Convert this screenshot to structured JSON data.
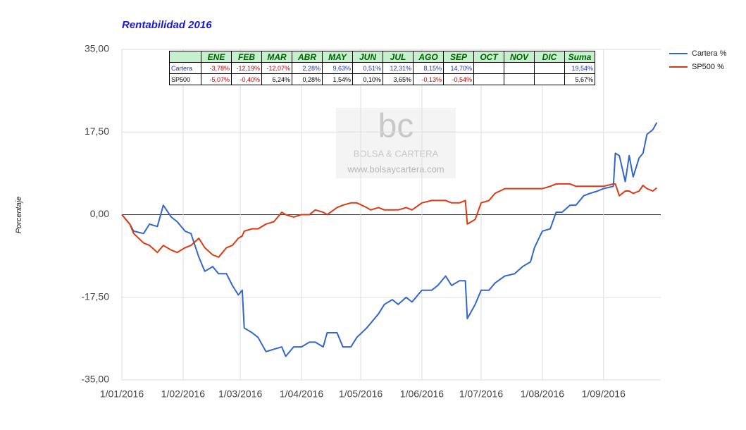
{
  "chart_data": {
    "type": "line",
    "title": "Rentabilidad 2016",
    "y_label": "Porcentaje",
    "x": [
      "2016-01-01",
      "2016-01-05",
      "2016-01-07",
      "2016-01-12",
      "2016-01-15",
      "2016-01-19",
      "2016-01-22",
      "2016-01-26",
      "2016-01-29",
      "2016-02-02",
      "2016-02-05",
      "2016-02-09",
      "2016-02-12",
      "2016-02-16",
      "2016-02-19",
      "2016-02-23",
      "2016-02-26",
      "2016-02-29",
      "2016-03-02",
      "2016-03-03",
      "2016-03-07",
      "2016-03-10",
      "2016-03-14",
      "2016-03-18",
      "2016-03-22",
      "2016-03-24",
      "2016-03-28",
      "2016-04-01",
      "2016-04-05",
      "2016-04-08",
      "2016-04-12",
      "2016-04-14",
      "2016-04-19",
      "2016-04-22",
      "2016-04-26",
      "2016-04-29",
      "2016-05-04",
      "2016-05-06",
      "2016-05-10",
      "2016-05-13",
      "2016-05-17",
      "2016-05-20",
      "2016-05-24",
      "2016-05-27",
      "2016-06-01",
      "2016-06-06",
      "2016-06-09",
      "2016-06-13",
      "2016-06-16",
      "2016-06-20",
      "2016-06-23",
      "2016-06-24",
      "2016-06-28",
      "2016-07-01",
      "2016-07-05",
      "2016-07-08",
      "2016-07-13",
      "2016-07-18",
      "2016-07-22",
      "2016-07-26",
      "2016-07-28",
      "2016-08-01",
      "2016-08-05",
      "2016-08-08",
      "2016-08-11",
      "2016-08-15",
      "2016-08-18",
      "2016-08-22",
      "2016-08-25",
      "2016-08-29",
      "2016-09-01",
      "2016-09-06",
      "2016-09-07",
      "2016-09-09",
      "2016-09-12",
      "2016-09-14",
      "2016-09-16",
      "2016-09-19",
      "2016-09-21",
      "2016-09-23",
      "2016-09-26",
      "2016-09-28"
    ],
    "series": [
      {
        "name": "Cartera %",
        "color": "#3366cc",
        "values": [
          0,
          -2,
          -3.5,
          -4,
          -2,
          -2.5,
          2,
          -0.5,
          -1.5,
          -3.5,
          -4,
          -9,
          -12,
          -11,
          -12.5,
          -12.5,
          -15,
          -17,
          -16,
          -24,
          -25,
          -26,
          -29,
          -28.5,
          -28,
          -30,
          -28,
          -28,
          -27,
          -27,
          -28,
          -25,
          -25,
          -28,
          -28,
          -26,
          -24,
          -23,
          -21,
          -19,
          -18,
          -19,
          -17.5,
          -18.5,
          -16,
          -16,
          -15,
          -13,
          -15,
          -14,
          -14,
          -22,
          -19,
          -16,
          -16,
          -14.5,
          -13,
          -12.5,
          -11,
          -10,
          -7,
          -3.5,
          -3,
          0.5,
          0.5,
          2,
          2,
          4,
          4.5,
          5,
          5.5,
          6,
          13,
          12.5,
          7,
          12.5,
          8,
          12,
          13,
          17,
          18,
          19.5
        ]
      },
      {
        "name": "SP500 %",
        "color": "#dc3912",
        "values": [
          0,
          -2,
          -4,
          -6,
          -6.5,
          -8,
          -6.5,
          -7.5,
          -8,
          -7,
          -6.5,
          -5,
          -7,
          -8.5,
          -9,
          -7,
          -6.5,
          -5,
          -4.5,
          -3.5,
          -3,
          -3,
          -2,
          -1.5,
          0.5,
          0,
          -0.5,
          0,
          0,
          1,
          0.5,
          0,
          1.5,
          2,
          2.5,
          2.5,
          1.5,
          1,
          1.5,
          1,
          1,
          1,
          1.5,
          1,
          2.5,
          3,
          3,
          3,
          2.5,
          2.5,
          3,
          -2,
          -1,
          2.5,
          3,
          4.5,
          5.5,
          5.5,
          5.5,
          5.5,
          5.5,
          5.5,
          6,
          6.5,
          6.5,
          6.5,
          6,
          6,
          6,
          6,
          6,
          6.5,
          6.5,
          4,
          5,
          5,
          4.5,
          5,
          6.2,
          5.5,
          5,
          5.67
        ]
      }
    ],
    "xlim": [
      "2016-01-01",
      "2016-09-30"
    ],
    "xticks": [
      {
        "value": "2016-01-01",
        "label": "1/01/2016"
      },
      {
        "value": "2016-02-01",
        "label": "1/02/2016"
      },
      {
        "value": "2016-03-01",
        "label": "1/03/2016"
      },
      {
        "value": "2016-04-01",
        "label": "1/04/2016"
      },
      {
        "value": "2016-05-01",
        "label": "1/05/2016"
      },
      {
        "value": "2016-06-01",
        "label": "1/06/2016"
      },
      {
        "value": "2016-07-01",
        "label": "1/07/2016"
      },
      {
        "value": "2016-08-01",
        "label": "1/08/2016"
      },
      {
        "value": "2016-09-01",
        "label": "1/09/2016"
      }
    ],
    "ylim": [
      -35,
      35
    ],
    "yticks": [
      {
        "value": -35,
        "label": "-35,00"
      },
      {
        "value": -17.5,
        "label": "-17,50"
      },
      {
        "value": 0,
        "label": "0,00"
      },
      {
        "value": 17.5,
        "label": "17,50"
      },
      {
        "value": 35,
        "label": "35,00"
      }
    ],
    "grid": true,
    "legend": "right"
  },
  "table": {
    "columns": [
      "ENE",
      "FEB",
      "MAR",
      "ABR",
      "MAY",
      "JUN",
      "JUL",
      "AGO",
      "SEP",
      "OCT",
      "NOV",
      "DIC",
      "Suma"
    ],
    "rows": [
      {
        "label": "Cartera",
        "values": [
          "-3,78%",
          "-12,19%",
          "-12,07%",
          "2,28%",
          "9,63%",
          "0,51%",
          "12,31%",
          "8,15%",
          "14,70%"
        ],
        "suma": "19,54%"
      },
      {
        "label": "SP500",
        "values": [
          "-5,07%",
          "-0,40%",
          "6,24%",
          "0,28%",
          "1,54%",
          "0,10%",
          "3,65%",
          "-0,13%",
          "-0,54%"
        ],
        "suma": "5,67%"
      }
    ]
  },
  "watermark": {
    "logo": "bc",
    "name": "BOLSA & CARTERA",
    "url": "www.bolsaycartera.com"
  }
}
